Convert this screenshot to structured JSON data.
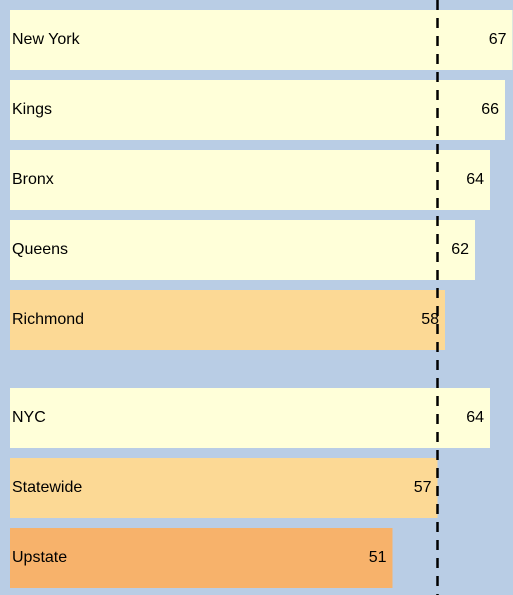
{
  "chart_data": {
    "type": "bar",
    "orientation": "horizontal",
    "categories": [
      "New York",
      "Kings",
      "Bronx",
      "Queens",
      "Richmond",
      null,
      "NYC",
      "Statewide",
      "Upstate"
    ],
    "values": [
      67,
      66,
      64,
      62,
      58,
      null,
      64,
      57,
      51
    ],
    "colors": [
      "#ffffd9",
      "#ffffd9",
      "#ffffd9",
      "#ffffd9",
      "#fcd995",
      null,
      "#ffffd9",
      "#fcd995",
      "#f7b26b"
    ],
    "reference_line": 57,
    "background": "#b9cde5"
  }
}
